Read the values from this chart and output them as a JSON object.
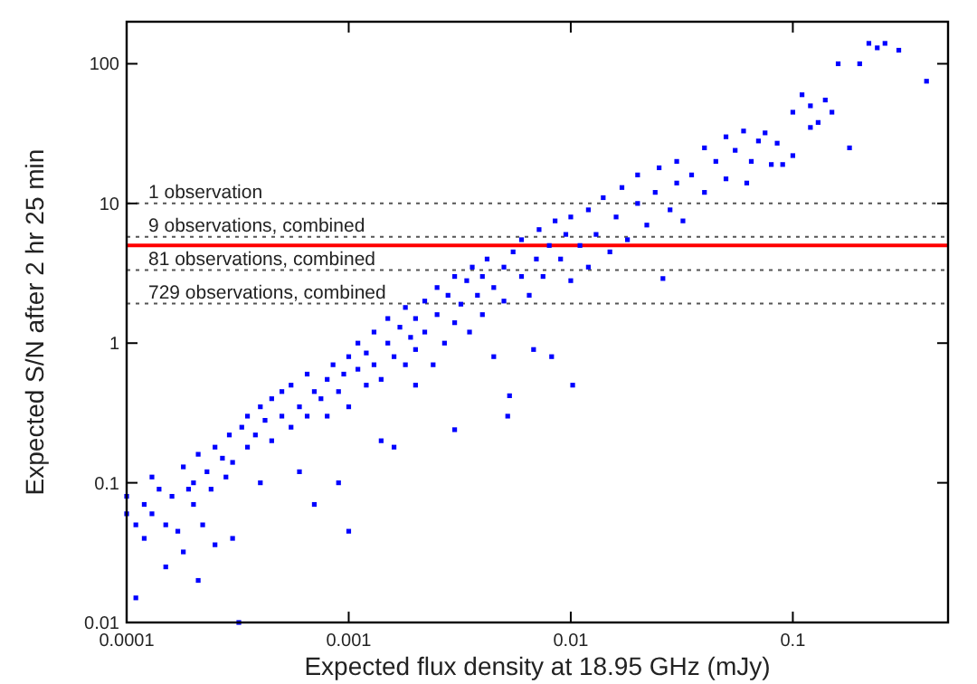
{
  "chart_data": {
    "type": "scatter",
    "xlabel": "Expected flux density at 18.95 GHz (mJy)",
    "ylabel": "Expected S/N after 2 hr 25 min",
    "log": "xy",
    "grid": false,
    "marker": "square",
    "xlim": [
      0.0001,
      0.5
    ],
    "xticks": [
      0.0001,
      0.001,
      0.01,
      0.1
    ],
    "ylim": [
      0.01,
      200
    ],
    "yticks": [
      0.01,
      0.1,
      1,
      10,
      100
    ],
    "series": [
      {
        "color": "#0000ff",
        "x": [
          0.0001,
          0.0001,
          0.00011,
          0.00011,
          0.00012,
          0.00012,
          0.00013,
          0.00013,
          0.00014,
          0.00015,
          0.00015,
          0.00016,
          0.00017,
          0.00018,
          0.00018,
          0.00019,
          0.0002,
          0.0002,
          0.00021,
          0.00021,
          0.00022,
          0.00023,
          0.00024,
          0.00025,
          0.00025,
          0.00027,
          0.00028,
          0.00029,
          0.0003,
          0.0003,
          0.00032,
          0.00033,
          0.00035,
          0.00035,
          0.00038,
          0.0004,
          0.0004,
          0.00042,
          0.00045,
          0.00045,
          0.0005,
          0.0005,
          0.00055,
          0.00055,
          0.0006,
          0.0006,
          0.00065,
          0.00065,
          0.0007,
          0.0007,
          0.00075,
          0.0008,
          0.0008,
          0.00085,
          0.0009,
          0.0009,
          0.00095,
          0.001,
          0.001,
          0.001,
          0.0011,
          0.0011,
          0.0012,
          0.0012,
          0.0013,
          0.0013,
          0.0014,
          0.0014,
          0.0015,
          0.0015,
          0.0016,
          0.0016,
          0.0017,
          0.0018,
          0.0018,
          0.0019,
          0.002,
          0.002,
          0.002,
          0.0022,
          0.0022,
          0.0024,
          0.0025,
          0.0025,
          0.0027,
          0.0028,
          0.003,
          0.003,
          0.003,
          0.0032,
          0.0034,
          0.0035,
          0.0036,
          0.0038,
          0.004,
          0.004,
          0.0042,
          0.0045,
          0.0045,
          0.005,
          0.005,
          0.0052,
          0.0053,
          0.0055,
          0.006,
          0.006,
          0.0065,
          0.0068,
          0.007,
          0.0072,
          0.0075,
          0.008,
          0.0082,
          0.0085,
          0.009,
          0.0095,
          0.01,
          0.0102,
          0.01,
          0.011,
          0.012,
          0.012,
          0.013,
          0.014,
          0.015,
          0.016,
          0.017,
          0.018,
          0.02,
          0.02,
          0.022,
          0.024,
          0.025,
          0.026,
          0.028,
          0.03,
          0.03,
          0.032,
          0.035,
          0.04,
          0.04,
          0.045,
          0.05,
          0.05,
          0.055,
          0.06,
          0.062,
          0.065,
          0.07,
          0.075,
          0.08,
          0.085,
          0.09,
          0.1,
          0.1,
          0.11,
          0.12,
          0.12,
          0.13,
          0.14,
          0.15,
          0.16,
          0.18,
          0.2,
          0.22,
          0.24,
          0.26,
          0.3,
          0.4
        ],
        "values": [
          0.06,
          0.08,
          0.05,
          0.015,
          0.07,
          0.04,
          0.11,
          0.06,
          0.09,
          0.05,
          0.025,
          0.08,
          0.045,
          0.13,
          0.032,
          0.09,
          0.1,
          0.07,
          0.16,
          0.02,
          0.05,
          0.12,
          0.09,
          0.18,
          0.036,
          0.15,
          0.11,
          0.22,
          0.14,
          0.04,
          0.01,
          0.25,
          0.3,
          0.18,
          0.22,
          0.35,
          0.1,
          0.28,
          0.4,
          0.2,
          0.3,
          0.45,
          0.25,
          0.5,
          0.35,
          0.12,
          0.6,
          0.3,
          0.45,
          0.07,
          0.4,
          0.55,
          0.3,
          0.7,
          0.45,
          0.1,
          0.6,
          0.8,
          0.35,
          0.045,
          0.65,
          1.0,
          0.5,
          0.85,
          1.2,
          0.7,
          0.55,
          0.2,
          1.0,
          1.5,
          0.8,
          0.18,
          1.3,
          0.7,
          1.8,
          1.1,
          0.9,
          1.5,
          0.5,
          2.0,
          1.2,
          0.7,
          1.6,
          2.5,
          1.0,
          2.2,
          1.4,
          3.0,
          0.24,
          1.9,
          2.8,
          1.2,
          3.5,
          2.2,
          1.6,
          3.0,
          4.0,
          2.5,
          0.8,
          3.5,
          2.0,
          0.3,
          0.42,
          4.5,
          3.0,
          5.5,
          2.2,
          0.9,
          4.0,
          6.5,
          3.0,
          5.0,
          0.8,
          7.5,
          4.0,
          6.0,
          2.8,
          0.5,
          8.0,
          5.0,
          9.0,
          3.5,
          6.0,
          11,
          4.5,
          8.0,
          13,
          5.5,
          10,
          16,
          7,
          12,
          18,
          2.9,
          9,
          14,
          20,
          7.5,
          16,
          25,
          12,
          20,
          30,
          15,
          24,
          33,
          14,
          20,
          28,
          32,
          19,
          27,
          19,
          45,
          22,
          60,
          35,
          50,
          38,
          55,
          45,
          100,
          25,
          100,
          140,
          130,
          140,
          125,
          75
        ]
      }
    ],
    "ref_lines": [
      {
        "axis": "y",
        "value": 10,
        "label": "1 observation",
        "color": "#555555",
        "line_style": "dotted"
      },
      {
        "axis": "y",
        "value": 5.77,
        "label": "9 observations, combined",
        "color": "#555555",
        "line_style": "dotted"
      },
      {
        "axis": "y",
        "value": 3.33,
        "label": "81 observations, combined",
        "color": "#555555",
        "line_style": "dotted"
      },
      {
        "axis": "y",
        "value": 1.92,
        "label": "729 observations, combined",
        "color": "#555555",
        "line_style": "dotted"
      },
      {
        "axis": "y",
        "value": 5,
        "color": "#ff0000",
        "line_style": "solid"
      }
    ]
  }
}
